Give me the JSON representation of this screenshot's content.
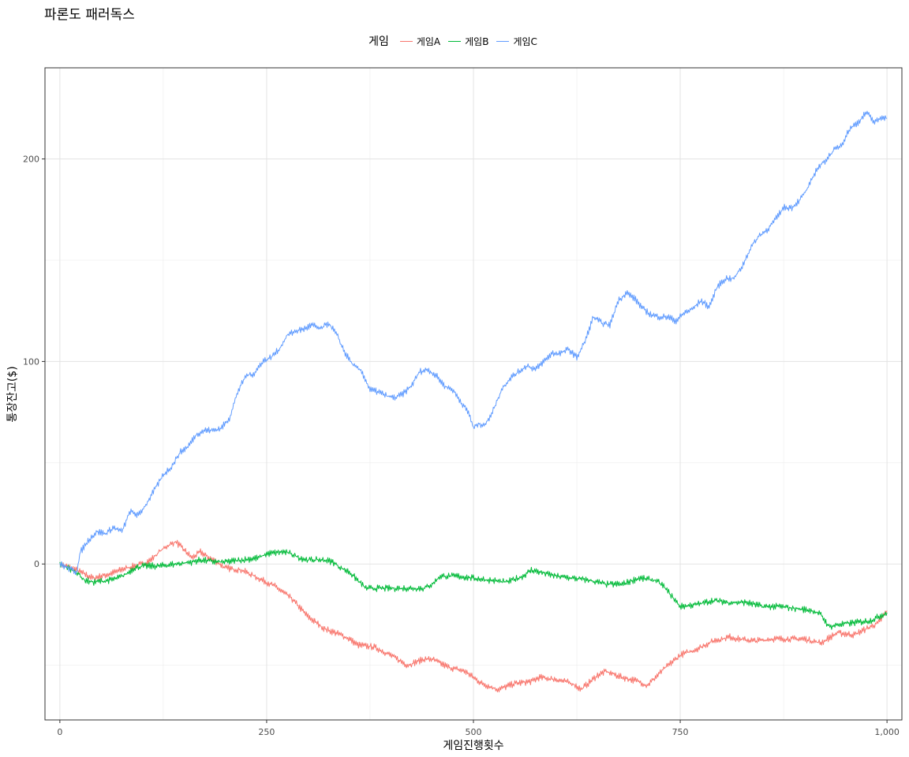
{
  "chart_data": {
    "type": "line",
    "title": "파론도 패러독스",
    "xlabel": "게임진행횟수",
    "ylabel": "통장잔고($)",
    "xlim": [
      -18,
      1018
    ],
    "ylim": [
      -77,
      245
    ],
    "x_ticks": [
      0,
      250,
      500,
      750,
      1000
    ],
    "x_tick_labels": [
      "0",
      "250",
      "500",
      "750",
      "1,000"
    ],
    "y_ticks": [
      0,
      100,
      200
    ],
    "y_tick_labels": [
      "0",
      "100",
      "200"
    ],
    "grid": true,
    "legend_position": "top",
    "legend_title": "게임",
    "series": [
      {
        "name": "게임A",
        "color": "#F8766D",
        "points": [
          [
            0,
            0
          ],
          [
            20,
            -3
          ],
          [
            40,
            -7
          ],
          [
            60,
            -5
          ],
          [
            80,
            -2
          ],
          [
            100,
            0
          ],
          [
            110,
            2
          ],
          [
            120,
            6
          ],
          [
            130,
            9
          ],
          [
            140,
            11
          ],
          [
            150,
            7
          ],
          [
            160,
            3
          ],
          [
            170,
            6
          ],
          [
            180,
            3
          ],
          [
            190,
            1
          ],
          [
            200,
            -2
          ],
          [
            220,
            -3
          ],
          [
            240,
            -7
          ],
          [
            260,
            -11
          ],
          [
            280,
            -17
          ],
          [
            300,
            -26
          ],
          [
            320,
            -32
          ],
          [
            340,
            -35
          ],
          [
            350,
            -37
          ],
          [
            360,
            -40
          ],
          [
            380,
            -41
          ],
          [
            400,
            -45
          ],
          [
            420,
            -50
          ],
          [
            440,
            -47
          ],
          [
            450,
            -47
          ],
          [
            470,
            -51
          ],
          [
            490,
            -53
          ],
          [
            500,
            -56
          ],
          [
            510,
            -59
          ],
          [
            530,
            -62
          ],
          [
            550,
            -59
          ],
          [
            570,
            -58
          ],
          [
            580,
            -56
          ],
          [
            600,
            -57
          ],
          [
            620,
            -59
          ],
          [
            630,
            -62
          ],
          [
            650,
            -55
          ],
          [
            660,
            -53
          ],
          [
            680,
            -56
          ],
          [
            700,
            -58
          ],
          [
            710,
            -60
          ],
          [
            730,
            -52
          ],
          [
            750,
            -45
          ],
          [
            770,
            -42
          ],
          [
            790,
            -38
          ],
          [
            810,
            -36
          ],
          [
            820,
            -37
          ],
          [
            840,
            -38
          ],
          [
            860,
            -37
          ],
          [
            880,
            -37
          ],
          [
            900,
            -37
          ],
          [
            920,
            -39
          ],
          [
            940,
            -34
          ],
          [
            960,
            -35
          ],
          [
            980,
            -31
          ],
          [
            990,
            -29
          ],
          [
            1000,
            -23
          ]
        ]
      },
      {
        "name": "게임B",
        "color": "#00BA38",
        "points": [
          [
            0,
            0
          ],
          [
            20,
            -4
          ],
          [
            30,
            -8
          ],
          [
            40,
            -9
          ],
          [
            60,
            -8
          ],
          [
            70,
            -7
          ],
          [
            80,
            -5
          ],
          [
            90,
            -2
          ],
          [
            100,
            -1
          ],
          [
            120,
            -1
          ],
          [
            140,
            0
          ],
          [
            160,
            1
          ],
          [
            170,
            2
          ],
          [
            190,
            1
          ],
          [
            200,
            1
          ],
          [
            220,
            2
          ],
          [
            240,
            3
          ],
          [
            250,
            5
          ],
          [
            270,
            6
          ],
          [
            280,
            5
          ],
          [
            290,
            3
          ],
          [
            300,
            2
          ],
          [
            320,
            2
          ],
          [
            330,
            1
          ],
          [
            340,
            -2
          ],
          [
            350,
            -4
          ],
          [
            360,
            -8
          ],
          [
            370,
            -12
          ],
          [
            380,
            -12
          ],
          [
            400,
            -12
          ],
          [
            420,
            -12
          ],
          [
            440,
            -12
          ],
          [
            450,
            -10
          ],
          [
            460,
            -6
          ],
          [
            480,
            -6
          ],
          [
            500,
            -7
          ],
          [
            520,
            -8
          ],
          [
            540,
            -9
          ],
          [
            560,
            -6
          ],
          [
            570,
            -3
          ],
          [
            580,
            -4
          ],
          [
            600,
            -6
          ],
          [
            620,
            -7
          ],
          [
            640,
            -8
          ],
          [
            660,
            -10
          ],
          [
            680,
            -10
          ],
          [
            700,
            -7
          ],
          [
            720,
            -8
          ],
          [
            730,
            -11
          ],
          [
            740,
            -16
          ],
          [
            750,
            -21
          ],
          [
            770,
            -20
          ],
          [
            790,
            -18
          ],
          [
            810,
            -19
          ],
          [
            830,
            -19
          ],
          [
            850,
            -21
          ],
          [
            870,
            -21
          ],
          [
            890,
            -22
          ],
          [
            910,
            -23
          ],
          [
            920,
            -25
          ],
          [
            930,
            -31
          ],
          [
            940,
            -30
          ],
          [
            960,
            -29
          ],
          [
            980,
            -28
          ],
          [
            990,
            -26
          ],
          [
            1000,
            -24
          ]
        ]
      },
      {
        "name": "게임C",
        "color": "#619CFF",
        "points": [
          [
            0,
            0
          ],
          [
            10,
            -2
          ],
          [
            20,
            -4
          ],
          [
            25,
            6
          ],
          [
            35,
            12
          ],
          [
            45,
            16
          ],
          [
            55,
            15
          ],
          [
            65,
            18
          ],
          [
            75,
            16
          ],
          [
            85,
            26
          ],
          [
            95,
            24
          ],
          [
            105,
            30
          ],
          [
            115,
            37
          ],
          [
            125,
            44
          ],
          [
            135,
            48
          ],
          [
            145,
            55
          ],
          [
            155,
            58
          ],
          [
            165,
            64
          ],
          [
            175,
            66
          ],
          [
            185,
            66
          ],
          [
            195,
            67
          ],
          [
            205,
            72
          ],
          [
            215,
            85
          ],
          [
            225,
            93
          ],
          [
            235,
            94
          ],
          [
            245,
            100
          ],
          [
            255,
            102
          ],
          [
            265,
            106
          ],
          [
            275,
            113
          ],
          [
            285,
            115
          ],
          [
            295,
            116
          ],
          [
            305,
            118
          ],
          [
            315,
            116
          ],
          [
            325,
            119
          ],
          [
            335,
            113
          ],
          [
            345,
            104
          ],
          [
            355,
            98
          ],
          [
            365,
            95
          ],
          [
            375,
            86
          ],
          [
            385,
            85
          ],
          [
            395,
            83
          ],
          [
            405,
            82
          ],
          [
            415,
            84
          ],
          [
            425,
            88
          ],
          [
            435,
            95
          ],
          [
            445,
            96
          ],
          [
            455,
            93
          ],
          [
            465,
            88
          ],
          [
            475,
            86
          ],
          [
            485,
            80
          ],
          [
            495,
            74
          ],
          [
            500,
            67
          ],
          [
            505,
            69
          ],
          [
            515,
            69
          ],
          [
            525,
            77
          ],
          [
            535,
            87
          ],
          [
            545,
            92
          ],
          [
            555,
            95
          ],
          [
            565,
            98
          ],
          [
            575,
            96
          ],
          [
            585,
            100
          ],
          [
            595,
            104
          ],
          [
            605,
            104
          ],
          [
            615,
            106
          ],
          [
            625,
            102
          ],
          [
            635,
            110
          ],
          [
            645,
            122
          ],
          [
            655,
            119
          ],
          [
            665,
            118
          ],
          [
            675,
            130
          ],
          [
            685,
            134
          ],
          [
            695,
            131
          ],
          [
            705,
            126
          ],
          [
            715,
            123
          ],
          [
            725,
            122
          ],
          [
            735,
            122
          ],
          [
            745,
            120
          ],
          [
            755,
            124
          ],
          [
            765,
            126
          ],
          [
            775,
            130
          ],
          [
            785,
            127
          ],
          [
            795,
            137
          ],
          [
            805,
            141
          ],
          [
            815,
            141
          ],
          [
            825,
            147
          ],
          [
            835,
            156
          ],
          [
            845,
            162
          ],
          [
            855,
            165
          ],
          [
            865,
            170
          ],
          [
            875,
            176
          ],
          [
            885,
            176
          ],
          [
            895,
            180
          ],
          [
            905,
            186
          ],
          [
            915,
            195
          ],
          [
            925,
            199
          ],
          [
            935,
            204
          ],
          [
            945,
            207
          ],
          [
            955,
            215
          ],
          [
            965,
            218
          ],
          [
            975,
            223
          ],
          [
            985,
            218
          ],
          [
            995,
            221
          ],
          [
            1000,
            220
          ]
        ]
      }
    ]
  }
}
